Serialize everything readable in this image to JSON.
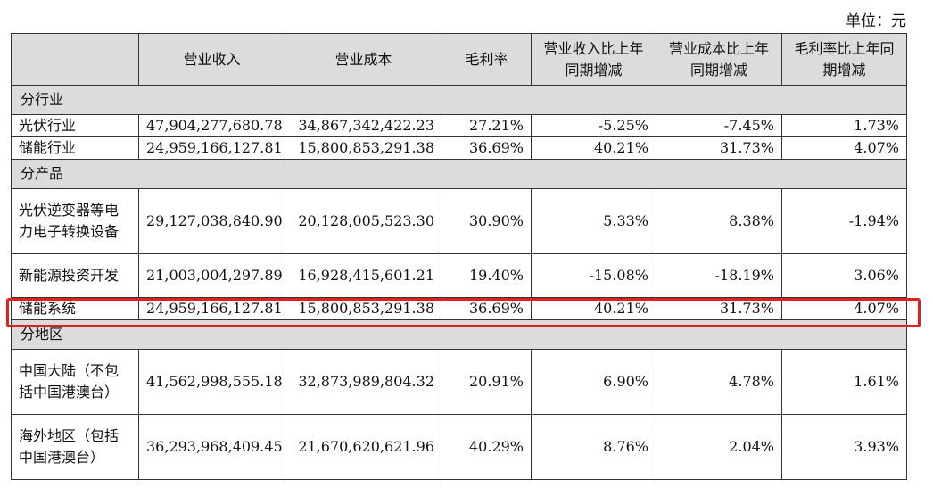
{
  "unit_label": "单位：元",
  "headers": [
    "",
    "营业收入",
    "营业成本",
    "毛利率",
    "营业收入比上年同期增减",
    "营业成本比上年同期增减",
    "毛利率比上年同期增减"
  ],
  "sections": [
    {
      "title": "分行业",
      "rows": [
        {
          "label": "光伏行业",
          "revenue": "47,904,277,680.78",
          "cost": "34,867,342,422.23",
          "margin": "27.21%",
          "rev_chg": "-5.25%",
          "cost_chg": "-7.45%",
          "margin_chg": "1.73%"
        },
        {
          "label": "储能行业",
          "revenue": "24,959,166,127.81",
          "cost": "15,800,853,291.38",
          "margin": "36.69%",
          "rev_chg": "40.21%",
          "cost_chg": "31.73%",
          "margin_chg": "4.07%"
        }
      ]
    },
    {
      "title": "分产品",
      "rows": [
        {
          "label": "光伏逆变器等电力电子转换设备",
          "revenue": "29,127,038,840.90",
          "cost": "20,128,005,523.30",
          "margin": "30.90%",
          "rev_chg": "5.33%",
          "cost_chg": "8.38%",
          "margin_chg": "-1.94%"
        },
        {
          "label": "新能源投资开发",
          "revenue": "21,003,004,297.89",
          "cost": "16,928,415,601.21",
          "margin": "19.40%",
          "rev_chg": "-15.08%",
          "cost_chg": "-18.19%",
          "margin_chg": "3.06%"
        },
        {
          "label": "储能系统",
          "revenue": "24,959,166,127.81",
          "cost": "15,800,853,291.38",
          "margin": "36.69%",
          "rev_chg": "40.21%",
          "cost_chg": "31.73%",
          "margin_chg": "4.07%"
        }
      ]
    },
    {
      "title": "分地区",
      "rows": [
        {
          "label": "中国大陆（不包括中国港澳台）",
          "revenue": "41,562,998,555.18",
          "cost": "32,873,989,804.32",
          "margin": "20.91%",
          "rev_chg": "6.90%",
          "cost_chg": "4.78%",
          "margin_chg": "1.61%"
        },
        {
          "label": "海外地区（包括中国港澳台）",
          "revenue": "36,293,968,409.45",
          "cost": "21,670,620,621.96",
          "margin": "40.29%",
          "rev_chg": "8.76%",
          "cost_chg": "2.04%",
          "margin_chg": "3.93%"
        }
      ]
    }
  ],
  "highlight_color": "#e02020"
}
